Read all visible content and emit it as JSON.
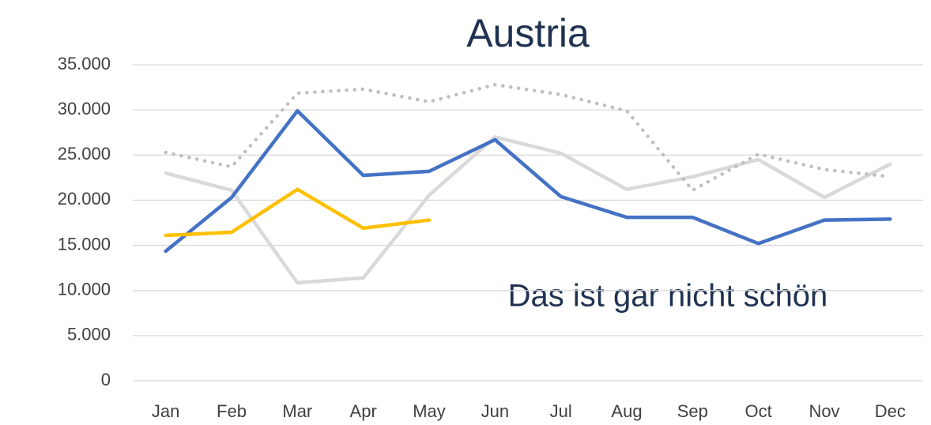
{
  "chart_data": {
    "type": "line",
    "title": "Austria",
    "annotation": "Das ist gar nicht schön",
    "categories": [
      "Jan",
      "Feb",
      "Mar",
      "Apr",
      "May",
      "Jun",
      "Jul",
      "Aug",
      "Sep",
      "Oct",
      "Nov",
      "Dec"
    ],
    "series": [
      {
        "color": "#d9d9d9",
        "dash": false,
        "values": [
          23000,
          21100,
          10850,
          11400,
          20550,
          27000,
          25200,
          21200,
          22600,
          24500,
          20300,
          24000
        ]
      },
      {
        "color": "#bfbfbf",
        "dash": true,
        "values": [
          25300,
          23700,
          31850,
          32300,
          30900,
          32800,
          31700,
          29900,
          21100,
          25100,
          23400,
          22600
        ]
      },
      {
        "color": "#4472c4",
        "dash": false,
        "values": [
          14350,
          20300,
          29900,
          22750,
          23200,
          26700,
          20400,
          18100,
          18100,
          15200,
          17800,
          17900
        ]
      },
      {
        "color": "#ffc000",
        "dash": false,
        "values": [
          16100,
          16450,
          21200,
          16900,
          17800,
          null,
          null,
          null,
          null,
          null,
          null,
          null
        ]
      }
    ],
    "ylim": [
      0,
      35000
    ],
    "yticks": [
      0,
      {
        "value": 5000,
        "label": "5.000"
      },
      {
        "value": 10000,
        "label": "10.000"
      },
      {
        "value": 15000,
        "label": "15.000"
      },
      {
        "value": 20000,
        "label": "20.000"
      },
      {
        "value": 25000,
        "label": "25.000"
      },
      {
        "value": 30000,
        "label": "30.000"
      },
      {
        "value": 35000,
        "label": "35.000"
      }
    ],
    "grid": true
  }
}
